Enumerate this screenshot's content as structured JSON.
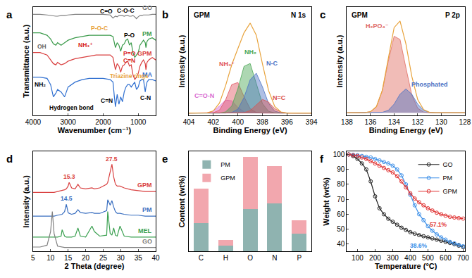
{
  "chart_data": [
    {
      "type": "line",
      "title": "a",
      "x_label": "Wavenumber (cm⁻¹)",
      "y_label": "Transmittance (a.u.)",
      "tick_labels": "x",
      "grid": false,
      "xlim": [
        4000,
        500
      ],
      "xticks": [
        4000,
        3000,
        2000,
        1000
      ],
      "ylim": [
        15,
        103
      ],
      "x": [
        4000,
        3800,
        3600,
        3500,
        3420,
        3350,
        3300,
        3200,
        3100,
        3000,
        2800,
        2600,
        2400,
        2200,
        2000,
        1800,
        1720,
        1680,
        1650,
        1600,
        1550,
        1500,
        1450,
        1400,
        1350,
        1300,
        1250,
        1200,
        1150,
        1100,
        1050,
        1000,
        950,
        900,
        850,
        800,
        780,
        750,
        700,
        600,
        500
      ],
      "series": [
        {
          "name": "GO",
          "color": "#808080",
          "values": [
            97,
            97,
            96.5,
            96,
            95.5,
            95.5,
            95.5,
            96,
            96,
            96.5,
            97,
            97,
            97,
            97,
            97,
            96.5,
            94,
            95,
            95.5,
            95,
            96,
            96,
            96,
            95.5,
            96,
            96,
            95.5,
            95.5,
            96,
            95,
            93.5,
            95,
            96,
            96,
            96.5,
            96.5,
            96.5,
            96.5,
            96.5,
            97,
            97
          ]
        },
        {
          "name": "PM",
          "color": "#3a9a4a",
          "values": [
            82,
            82,
            80,
            77,
            73,
            72,
            74,
            72,
            74,
            76,
            78,
            79,
            80,
            80,
            80,
            80,
            79,
            74,
            70,
            74,
            72,
            67,
            72,
            73,
            76,
            77,
            72,
            74,
            66,
            62,
            64,
            66,
            72,
            74,
            76,
            74,
            70,
            75,
            77,
            78,
            76
          ]
        },
        {
          "name": "GPM",
          "color": "#d94040",
          "values": [
            66,
            66,
            64,
            60,
            57,
            56,
            58,
            56,
            57,
            59,
            61,
            62,
            63,
            64,
            64,
            64,
            62,
            56,
            52,
            57,
            55,
            50,
            55,
            56,
            58,
            59,
            55,
            56,
            48,
            44,
            46,
            49,
            55,
            58,
            60,
            57,
            52,
            58,
            60,
            62,
            60
          ]
        },
        {
          "name": "MA",
          "color": "#2f6fd0",
          "values": [
            46,
            46,
            45,
            40,
            30,
            33,
            36,
            34,
            30,
            38,
            42,
            44,
            45,
            45,
            45,
            44,
            42,
            30,
            22,
            32,
            24,
            30,
            26,
            34,
            38,
            40,
            40,
            38,
            40,
            42,
            36,
            38,
            43,
            44,
            44,
            34,
            38,
            42,
            44,
            44,
            43
          ]
        }
      ],
      "annotations": [
        {
          "text": "C=O",
          "x": 1900,
          "y": 99.5
        },
        {
          "text": "C-O-C",
          "x": 1350,
          "y": 100
        },
        {
          "text": "NH₃⁺",
          "x": 2500,
          "y": 72,
          "color": "#d62728"
        },
        {
          "text": "P-O",
          "x": 1250,
          "y": 80
        },
        {
          "text": "P-O-C",
          "x": 2100,
          "y": 86,
          "color": "#e8a33c"
        },
        {
          "text": "OH",
          "x": 3750,
          "y": 71,
          "color": "#666666"
        },
        {
          "text": "P=O",
          "x": 1250,
          "y": 65,
          "color": "#d62728"
        },
        {
          "text": "C=N",
          "x": 1250,
          "y": 59.5,
          "color": "#d62728"
        },
        {
          "text": "NH₂",
          "x": 3800,
          "y": 40
        },
        {
          "text": "C=N",
          "x": 1900,
          "y": 27
        },
        {
          "text": "Hydrogen bond",
          "x": 2900,
          "y": 21
        },
        {
          "text": "Triazine rings",
          "x": 1250,
          "y": 47,
          "color": "#e8a33c"
        },
        {
          "text": "C-N",
          "x": 800,
          "y": 29
        }
      ]
    },
    {
      "type": "line",
      "title": "b",
      "x_label": "Binding Energy (eV)",
      "y_label": "Intensity (a.u.)",
      "tick_labels": "x",
      "grid": false,
      "xlim": [
        404,
        394
      ],
      "xticks": [
        404,
        402,
        400,
        398,
        396,
        394
      ],
      "ylim": [
        -2,
        92
      ],
      "inset_labels": [
        "GPM",
        "N 1s"
      ],
      "x": [
        404,
        403.5,
        403,
        402.5,
        402,
        401.5,
        401,
        400.5,
        400,
        399.5,
        399,
        398.5,
        398,
        397.5,
        397,
        396.5,
        396,
        395.5,
        395,
        394.5,
        394
      ],
      "series": [
        {
          "name": "C=O-N",
          "type": "area",
          "color": "#d96bd0",
          "values": [
            0,
            0,
            0,
            0.2,
            1.6,
            6.1,
            11.3,
            10.6,
            4.9,
            1.1,
            0.1,
            0,
            0,
            0,
            0,
            0,
            0,
            0,
            0,
            0,
            0
          ]
        },
        {
          "name": "NH₃⁺",
          "type": "area",
          "color": "#e0545f",
          "values": [
            0,
            0,
            0,
            0,
            0.3,
            2.6,
            11.5,
            24.7,
            26.5,
            14.2,
            3.8,
            0.5,
            0,
            0,
            0,
            0,
            0,
            0,
            0,
            0,
            0
          ]
        },
        {
          "name": "NH₂",
          "type": "area",
          "color": "#4aa654",
          "values": [
            0,
            0,
            0,
            0,
            0,
            0,
            1.0,
            6.1,
            21.1,
            40.5,
            43,
            25.2,
            8.2,
            1.5,
            0.2,
            0,
            0,
            0,
            0,
            0,
            0
          ]
        },
        {
          "name": "N-C",
          "type": "area",
          "color": "#4b72c4",
          "values": [
            0,
            0,
            0,
            0,
            0,
            0,
            0,
            0.5,
            3.4,
            13.5,
            28.9,
            34.6,
            22.8,
            8.4,
            1.7,
            0.2,
            0,
            0,
            0,
            0,
            0
          ]
        },
        {
          "name": "N=C",
          "type": "area",
          "color": "#d9534f",
          "values": [
            0,
            0,
            0,
            0,
            0,
            0,
            0,
            0,
            0,
            0.3,
            2.2,
            7.3,
            11.8,
            9.6,
            3.9,
            0.8,
            0,
            0,
            0,
            0,
            0
          ]
        },
        {
          "type": "line",
          "color": "#e8a33c",
          "values": [
            0,
            0,
            0,
            0.2,
            1.9,
            8.7,
            23.8,
            41.9,
            55.9,
            69.6,
            78.0,
            67.6,
            42.8,
            19.5,
            5.8,
            1.0,
            0,
            0,
            0,
            0,
            0
          ]
        }
      ]
    },
    {
      "type": "line",
      "title": "c",
      "x_label": "Binding Energy (eV)",
      "y_label": "Intensity (a.u.)",
      "tick_labels": "x",
      "grid": false,
      "xlim": [
        138,
        128
      ],
      "xticks": [
        138,
        136,
        134,
        132,
        130,
        128
      ],
      "ylim": [
        -2,
        80
      ],
      "inset_labels": [
        "GPM",
        "P 2p"
      ],
      "x": [
        138,
        137.5,
        137,
        136.5,
        136,
        135.5,
        135,
        134.5,
        134,
        133.5,
        133,
        132.5,
        132,
        131.5,
        131,
        130.5,
        130,
        129.5,
        129,
        128.5,
        128
      ],
      "series": [
        {
          "name": "H₂PO₄⁻",
          "type": "area",
          "color": "#e06a5f",
          "values": [
            0,
            0,
            0,
            0.1,
            0.8,
            4.6,
            16.7,
            38.8,
            57.9,
            55.4,
            34.0,
            13.4,
            3.4,
            0.5,
            0,
            0,
            0,
            0,
            0,
            0,
            0
          ]
        },
        {
          "name": "Phosphated",
          "type": "area",
          "color": "#4b72c4",
          "values": [
            0,
            0,
            0,
            0,
            0,
            0,
            0.3,
            1.8,
            6.5,
            14.0,
            18,
            14.0,
            6.5,
            1.8,
            0.3,
            0,
            0,
            0,
            0,
            0,
            0
          ]
        },
        {
          "type": "line",
          "color": "#e8a33c",
          "values": [
            0,
            0,
            0,
            0.1,
            0.8,
            4.6,
            17.0,
            40.6,
            64.4,
            69.4,
            52.0,
            27.4,
            9.9,
            2.3,
            0.3,
            0,
            0,
            0,
            0,
            0,
            0
          ]
        }
      ]
    },
    {
      "type": "line",
      "title": "d",
      "x_label": "2 Theta (degree)",
      "y_label": "Intensity (a.u.)",
      "tick_labels": "x",
      "grid": false,
      "xlim": [
        5,
        40
      ],
      "xticks": [
        5,
        10,
        15,
        20,
        25,
        30,
        35,
        40
      ],
      "ylim": [
        -2,
        108
      ],
      "x": [
        5,
        7,
        9,
        10,
        10.5,
        11,
        12,
        13,
        13.3,
        14,
        14.5,
        15,
        15.3,
        16,
        17,
        17.8,
        18.5,
        20,
        21.8,
        22.5,
        24,
        26,
        26.3,
        27,
        27.5,
        28,
        28.5,
        29,
        29.8,
        31,
        33,
        35,
        37,
        40
      ],
      "series": [
        {
          "name": "GPM",
          "color": "#d94040",
          "values": [
            63,
            63,
            63,
            63,
            63,
            63,
            64,
            65,
            65,
            66,
            67,
            70,
            74,
            68,
            67,
            72,
            68,
            67,
            68,
            67,
            68,
            72,
            74,
            86,
            94,
            80,
            72,
            70,
            70,
            68,
            66,
            65,
            64,
            64
          ]
        },
        {
          "name": "PM",
          "color": "#3a6fc0",
          "values": [
            37,
            37,
            37,
            37,
            37,
            37,
            38,
            39,
            39,
            42,
            50,
            41,
            40,
            39,
            40,
            44,
            41,
            40,
            41,
            40,
            40,
            43,
            55,
            49,
            54,
            47,
            42,
            40,
            40,
            39,
            38,
            38,
            37,
            37
          ]
        },
        {
          "name": "MEL",
          "color": "#3aa050",
          "values": [
            14,
            14,
            14,
            14,
            14,
            14,
            14,
            15,
            22,
            15,
            14,
            14,
            14,
            14,
            15,
            24,
            15,
            14,
            26,
            20,
            15,
            16,
            42,
            18,
            16,
            24,
            16,
            15,
            26,
            15,
            14,
            14,
            14,
            14
          ]
        },
        {
          "name": "GO",
          "color": "#808080",
          "values": [
            3,
            3,
            5,
            20,
            42,
            18,
            4,
            3,
            3,
            2.5,
            2.5,
            2.5,
            2.5,
            2.5,
            2.5,
            2.5,
            2.5,
            2.5,
            2.5,
            2.5,
            2.5,
            2.5,
            2.5,
            2.5,
            2.5,
            2.5,
            2.5,
            2.5,
            2.5,
            2.5,
            2.5,
            2.5,
            2.5,
            2.5
          ]
        }
      ],
      "annotations": [
        {
          "text": "15.3",
          "x": 15.3,
          "y": 80,
          "color": "#d94040"
        },
        {
          "text": "27.5",
          "x": 27.5,
          "y": 100,
          "color": "#d94040"
        },
        {
          "text": "14.5",
          "x": 14.5,
          "y": 56,
          "color": "#3a6fc0"
        }
      ]
    },
    {
      "type": "bar",
      "title": "e",
      "y_label": "Content (wt%)",
      "tick_labels": "x",
      "grid": false,
      "stacked": true,
      "legend": "upper left",
      "categories": [
        "C",
        "H",
        "O",
        "N",
        "P"
      ],
      "ylim": [
        0,
        70
      ],
      "series": [
        {
          "name": "PM",
          "color": "#8fb3b0",
          "values": [
            20,
            4,
            30,
            33.5,
            12.5
          ]
        },
        {
          "name": "GPM",
          "color": "#f2a7ae",
          "values": [
            24,
            4,
            36,
            26.5,
            9.5
          ]
        }
      ]
    },
    {
      "type": "line",
      "title": "f",
      "x_label": "Temperature (°C)",
      "y_label": "Weight (wt%)",
      "grid": false,
      "legend": "upper right",
      "marker": "circle-open",
      "xlim": [
        40,
        710
      ],
      "xticks": [
        100,
        200,
        300,
        400,
        500,
        600,
        700
      ],
      "ylim": [
        35,
        102
      ],
      "yticks": [
        40,
        50,
        60,
        70,
        80,
        90,
        100
      ],
      "x": [
        50,
        75,
        100,
        125,
        150,
        175,
        200,
        225,
        250,
        275,
        300,
        325,
        350,
        375,
        400,
        425,
        450,
        475,
        500,
        525,
        550,
        575,
        600,
        625,
        650,
        675,
        700
      ],
      "series": [
        {
          "name": "GO",
          "color": "#222222",
          "values": [
            100,
            99,
            97,
            94,
            90,
            82,
            72,
            64,
            60,
            57,
            55,
            53,
            51,
            49.5,
            48,
            47,
            46,
            45.3,
            44.5,
            43.8,
            43,
            42.3,
            41.5,
            40.8,
            40,
            39,
            38
          ]
        },
        {
          "name": "PM",
          "color": "#3a8ee8",
          "values": [
            100,
            99.8,
            99.5,
            99,
            98.5,
            98,
            97,
            96,
            95,
            94,
            92.5,
            90,
            86,
            80,
            73,
            66,
            60,
            56,
            52,
            49,
            46.5,
            44.5,
            43,
            41.5,
            40.5,
            39.5,
            38.6
          ]
        },
        {
          "name": "GPM",
          "color": "#e03030",
          "values": [
            100,
            99.5,
            99,
            98,
            97,
            95.5,
            94,
            92.5,
            91,
            89.5,
            88,
            85.5,
            82,
            78,
            74,
            70.5,
            68,
            66,
            64,
            62.5,
            61,
            60,
            59,
            58.3,
            57.8,
            57.4,
            57.1
          ]
        }
      ],
      "annotations": [
        {
          "text": "57.1%",
          "x": 560,
          "y": 53,
          "color": "#e03030"
        },
        {
          "text": "38.6%",
          "x": 450,
          "y": 39,
          "color": "#3a8ee8"
        }
      ]
    }
  ]
}
